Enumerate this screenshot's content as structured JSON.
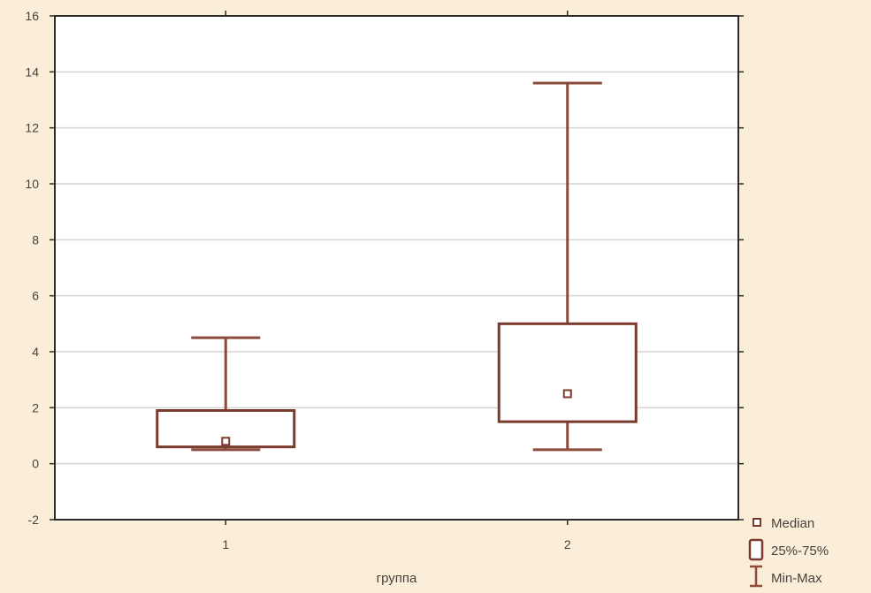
{
  "chart_data": {
    "type": "box",
    "categories": [
      "1",
      "2"
    ],
    "boxes": [
      {
        "category": "1",
        "min": 0.5,
        "q1": 0.6,
        "median": 0.8,
        "q3": 1.9,
        "max": 4.5
      },
      {
        "category": "2",
        "min": 0.5,
        "q1": 1.5,
        "median": 2.5,
        "q3": 5.0,
        "max": 13.6
      }
    ],
    "ylim": [
      -2,
      16
    ],
    "yticks": [
      -2,
      0,
      2,
      4,
      6,
      8,
      10,
      12,
      14,
      16
    ],
    "xlabel": "группа",
    "ylabel": "",
    "grid": true,
    "legend_position": "bottom-right",
    "legend": [
      {
        "symbol": "median-marker",
        "label": "Median"
      },
      {
        "symbol": "box",
        "label": "25%-75%"
      },
      {
        "symbol": "whisker",
        "label": "Min-Max"
      }
    ],
    "colors": {
      "background": "#fbeed8",
      "plot_background": "#ffffff",
      "box_stroke": "#7a3a2e",
      "whisker": "#8a4a3c",
      "grid": "#d9d4d0",
      "frame": "#2b2b2b"
    }
  }
}
